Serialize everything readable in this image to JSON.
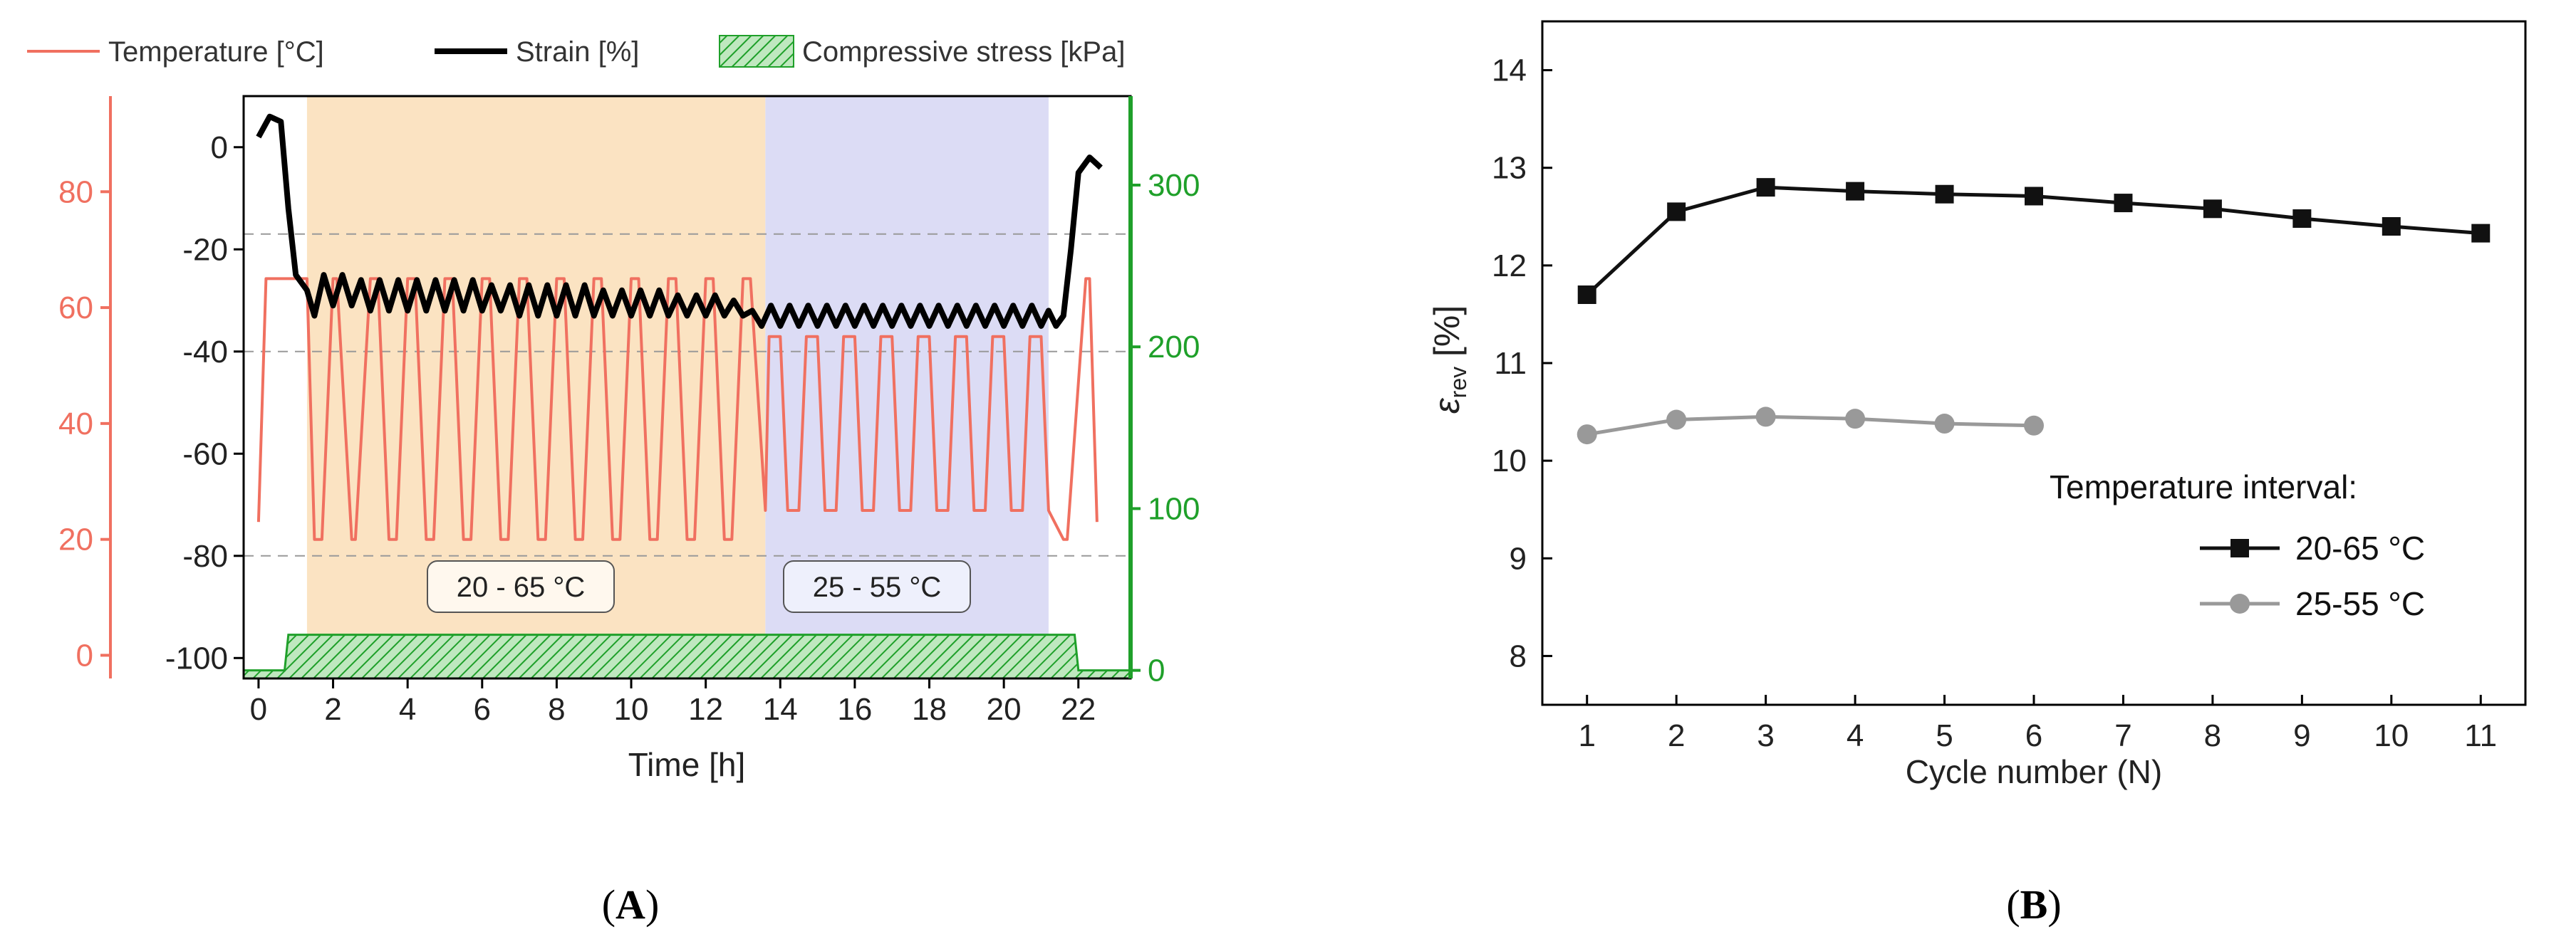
{
  "colors": {
    "temperature": "#f07060",
    "strain": "#000000",
    "stress": "#1fa02a",
    "band_a": "#fbe3c2",
    "band_b": "#dcdcf5",
    "series_a": "#111111",
    "series_b": "#999999"
  },
  "panel_a": {
    "label_open": "(",
    "label_letter": "A",
    "label_close": ")",
    "legend": {
      "temperature": "Temperature [°C]",
      "strain": "Strain [%]",
      "stress": "Compressive stress [kPa]"
    },
    "interval_1": "20 - 65 °C",
    "interval_2": "25 - 55 °C"
  },
  "panel_b": {
    "label_open": "(",
    "label_letter": "B",
    "label_close": ")",
    "legend_title": "Temperature interval:"
  },
  "chart_data": [
    {
      "type": "line",
      "title": "",
      "xlabel": "Time [h]",
      "xlim": [
        -0.4,
        23.4
      ],
      "xticks": [
        0,
        2,
        4,
        6,
        8,
        10,
        12,
        14,
        16,
        18,
        20,
        22
      ],
      "bands": [
        {
          "from": 1.3,
          "to": 13.6,
          "label": "20 - 65 °C"
        },
        {
          "from": 13.6,
          "to": 21.2,
          "label": "25 - 55 °C"
        }
      ],
      "axes": {
        "strain": {
          "label": "Strain [%]",
          "range": [
            -104,
            10
          ],
          "ticks": [
            0,
            -20,
            -40,
            -60,
            -80,
            -100
          ]
        },
        "temperature": {
          "label": "Temperature [°C]",
          "range": [
            -4,
            96.5
          ],
          "ticks": [
            0,
            20,
            40,
            60,
            80
          ]
        },
        "stress": {
          "label": "Compressive stress [kPa]",
          "range": [
            -5,
            355
          ],
          "ticks": [
            0,
            100,
            200,
            300
          ]
        }
      },
      "reference_lines_strain": [
        -17,
        -40,
        -80
      ],
      "series": [
        {
          "name": "Temperature [°C]",
          "axis": "temperature",
          "x": [
            0,
            0.2,
            0.3,
            0.8,
            0.9,
            1.3,
            1.5,
            1.7,
            2.0,
            2.1,
            2.5,
            2.6,
            3.0,
            3.2,
            3.5,
            3.7,
            4.0,
            4.2,
            4.5,
            4.7,
            5.0,
            5.2,
            5.5,
            5.7,
            6.0,
            6.2,
            6.5,
            6.7,
            7.0,
            7.2,
            7.5,
            7.7,
            8.0,
            8.2,
            8.5,
            8.7,
            9.0,
            9.2,
            9.5,
            9.7,
            10.0,
            10.2,
            10.5,
            10.7,
            11.0,
            11.2,
            11.5,
            11.7,
            12.0,
            12.2,
            12.5,
            12.7,
            13.0,
            13.2,
            13.6,
            13.7,
            14.0,
            14.2,
            14.5,
            14.7,
            15.0,
            15.2,
            15.5,
            15.7,
            16.0,
            16.2,
            16.5,
            16.7,
            17.0,
            17.2,
            17.5,
            17.7,
            18.0,
            18.2,
            18.5,
            18.7,
            19.0,
            19.2,
            19.5,
            19.7,
            20.0,
            20.2,
            20.5,
            20.7,
            21.0,
            21.2,
            21.6,
            21.7,
            22.2,
            22.3,
            22.5
          ],
          "values": [
            23,
            65,
            65,
            65,
            65,
            65,
            20,
            20,
            65,
            65,
            20,
            20,
            65,
            65,
            20,
            20,
            65,
            65,
            20,
            20,
            65,
            65,
            20,
            20,
            65,
            65,
            20,
            20,
            65,
            65,
            20,
            20,
            65,
            65,
            20,
            20,
            65,
            65,
            20,
            20,
            65,
            65,
            20,
            20,
            65,
            65,
            20,
            20,
            65,
            65,
            20,
            20,
            65,
            65,
            25,
            55,
            55,
            25,
            25,
            55,
            55,
            25,
            25,
            55,
            55,
            25,
            25,
            55,
            55,
            25,
            25,
            55,
            55,
            25,
            25,
            55,
            55,
            25,
            25,
            55,
            55,
            25,
            25,
            55,
            55,
            25,
            20,
            20,
            65,
            65,
            23
          ]
        },
        {
          "name": "Strain [%]",
          "axis": "strain",
          "x": [
            0,
            0.3,
            0.6,
            0.8,
            1.0,
            1.3,
            1.5,
            1.75,
            2.0,
            2.25,
            2.5,
            2.75,
            3.0,
            3.25,
            3.5,
            3.75,
            4.0,
            4.25,
            4.5,
            4.75,
            5.0,
            5.25,
            5.5,
            5.75,
            6.0,
            6.25,
            6.5,
            6.75,
            7.0,
            7.25,
            7.5,
            7.75,
            8.0,
            8.25,
            8.5,
            8.75,
            9.0,
            9.25,
            9.5,
            9.75,
            10.0,
            10.25,
            10.5,
            10.75,
            11.0,
            11.25,
            11.5,
            11.75,
            12.0,
            12.25,
            12.5,
            12.75,
            13.0,
            13.25,
            13.5,
            13.75,
            14.0,
            14.25,
            14.5,
            14.75,
            15.0,
            15.25,
            15.5,
            15.75,
            16.0,
            16.25,
            16.5,
            16.75,
            17.0,
            17.25,
            17.5,
            17.75,
            18.0,
            18.25,
            18.5,
            18.75,
            19.0,
            19.25,
            19.5,
            19.75,
            20.0,
            20.25,
            20.5,
            20.75,
            21.0,
            21.2,
            21.4,
            21.6,
            21.8,
            22.0,
            22.3,
            22.6
          ],
          "values": [
            2,
            6,
            5,
            -12,
            -25,
            -28,
            -33,
            -25,
            -31,
            -25,
            -31,
            -26,
            -32,
            -26,
            -32,
            -26,
            -32,
            -26,
            -32,
            -26,
            -32,
            -26,
            -32,
            -26,
            -32,
            -27,
            -32,
            -27,
            -33,
            -27,
            -33,
            -27,
            -33,
            -27,
            -33,
            -27,
            -33,
            -28,
            -33,
            -28,
            -33,
            -28,
            -33,
            -28,
            -33,
            -29,
            -33,
            -29,
            -33,
            -29,
            -33,
            -30,
            -33,
            -32,
            -35,
            -31,
            -35,
            -31,
            -35,
            -31,
            -35,
            -31,
            -35,
            -31,
            -35,
            -31,
            -35,
            -31,
            -35,
            -31,
            -35,
            -31,
            -35,
            -31,
            -35,
            -31,
            -35,
            -31,
            -35,
            -31,
            -35,
            -31,
            -35,
            -31,
            -35,
            -32,
            -35,
            -33,
            -20,
            -5,
            -2,
            -4
          ]
        },
        {
          "name": "Compressive stress [kPa]",
          "axis": "stress",
          "x": [
            -0.4,
            0.7,
            0.8,
            21.9,
            22.0,
            23.4
          ],
          "values": [
            0,
            0,
            22,
            22,
            0,
            0
          ]
        }
      ]
    },
    {
      "type": "line",
      "title": "",
      "xlabel": "Cycle number (N)",
      "ylabel": "ε_rev [%]",
      "xlim": [
        0.5,
        11.5
      ],
      "ylim": [
        7.5,
        14.5
      ],
      "xticks": [
        1,
        2,
        3,
        4,
        5,
        6,
        7,
        8,
        9,
        10,
        11
      ],
      "yticks": [
        8,
        9,
        10,
        11,
        12,
        13,
        14
      ],
      "legend_title": "Temperature interval:",
      "series": [
        {
          "name": "20-65 °C",
          "x": [
            1,
            2,
            3,
            4,
            5,
            6,
            7,
            8,
            9,
            10,
            11
          ],
          "values": [
            11.7,
            12.55,
            12.8,
            12.76,
            12.73,
            12.71,
            12.64,
            12.58,
            12.48,
            12.4,
            12.33
          ]
        },
        {
          "name": "25-55 °C",
          "x": [
            1,
            2,
            3,
            4,
            5,
            6
          ],
          "values": [
            10.27,
            10.42,
            10.45,
            10.43,
            10.38,
            10.36
          ]
        }
      ]
    }
  ]
}
